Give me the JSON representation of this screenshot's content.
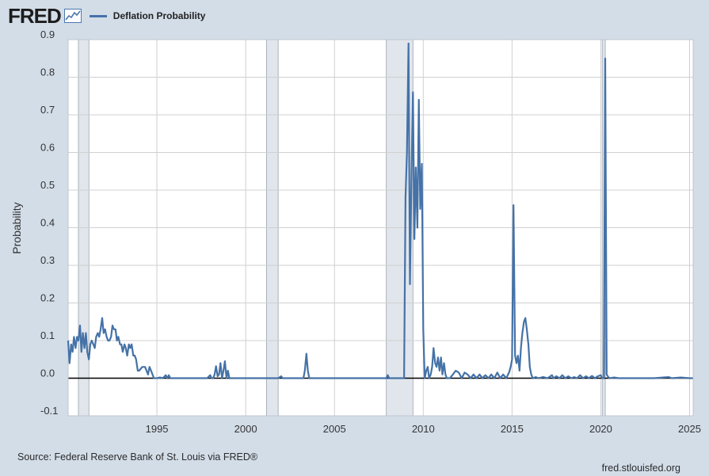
{
  "header": {
    "logo_text": "FRED",
    "logo_icon": "line-chart-icon",
    "legend_label": "Deflation Probability"
  },
  "colors": {
    "background": "#d3dde8",
    "plot_background": "#ffffff",
    "series": "#4572a7",
    "recession": "#e1e6ec",
    "grid": "#d0d0d0",
    "zero_line": "#000000"
  },
  "chart_data": {
    "type": "line",
    "ylabel": "Probability",
    "xlim": [
      1990.0,
      2025.2
    ],
    "ylim": [
      -0.1,
      0.9
    ],
    "yticks": [
      "-0.1",
      "0.0",
      "0.1",
      "0.2",
      "0.3",
      "0.4",
      "0.5",
      "0.6",
      "0.7",
      "0.8",
      "0.9"
    ],
    "xticks": [
      "1995",
      "2000",
      "2005",
      "2010",
      "2015",
      "2020",
      "2025"
    ],
    "grid": true,
    "legend_position": "top-left",
    "recessions": [
      [
        1990.58,
        1991.17
      ],
      [
        2001.17,
        2001.83
      ],
      [
        2007.92,
        2009.42
      ],
      [
        2020.08,
        2020.25
      ]
    ],
    "series": [
      {
        "name": "Deflation Probability",
        "points": [
          [
            1990.0,
            0.1
          ],
          [
            1990.08,
            0.04
          ],
          [
            1990.17,
            0.09
          ],
          [
            1990.25,
            0.07
          ],
          [
            1990.33,
            0.11
          ],
          [
            1990.42,
            0.08
          ],
          [
            1990.5,
            0.11
          ],
          [
            1990.58,
            0.1
          ],
          [
            1990.67,
            0.14
          ],
          [
            1990.75,
            0.07
          ],
          [
            1990.83,
            0.12
          ],
          [
            1990.92,
            0.08
          ],
          [
            1991.0,
            0.12
          ],
          [
            1991.08,
            0.07
          ],
          [
            1991.17,
            0.05
          ],
          [
            1991.25,
            0.09
          ],
          [
            1991.33,
            0.1
          ],
          [
            1991.42,
            0.09
          ],
          [
            1991.5,
            0.08
          ],
          [
            1991.58,
            0.11
          ],
          [
            1991.67,
            0.12
          ],
          [
            1991.75,
            0.11
          ],
          [
            1991.83,
            0.13
          ],
          [
            1991.92,
            0.16
          ],
          [
            1992.0,
            0.12
          ],
          [
            1992.08,
            0.13
          ],
          [
            1992.17,
            0.11
          ],
          [
            1992.25,
            0.1
          ],
          [
            1992.33,
            0.1
          ],
          [
            1992.42,
            0.11
          ],
          [
            1992.5,
            0.14
          ],
          [
            1992.58,
            0.13
          ],
          [
            1992.67,
            0.13
          ],
          [
            1992.75,
            0.1
          ],
          [
            1992.83,
            0.11
          ],
          [
            1992.92,
            0.09
          ],
          [
            1993.0,
            0.09
          ],
          [
            1993.08,
            0.07
          ],
          [
            1993.17,
            0.09
          ],
          [
            1993.25,
            0.08
          ],
          [
            1993.33,
            0.06
          ],
          [
            1993.42,
            0.09
          ],
          [
            1993.5,
            0.08
          ],
          [
            1993.58,
            0.09
          ],
          [
            1993.67,
            0.06
          ],
          [
            1993.75,
            0.06
          ],
          [
            1993.83,
            0.05
          ],
          [
            1993.92,
            0.02
          ],
          [
            1994.0,
            0.02
          ],
          [
            1994.17,
            0.03
          ],
          [
            1994.33,
            0.03
          ],
          [
            1994.5,
            0.01
          ],
          [
            1994.58,
            0.03
          ],
          [
            1994.67,
            0.02
          ],
          [
            1994.83,
            0.0
          ],
          [
            1995.0,
            0.0
          ],
          [
            1995.17,
            0.002
          ],
          [
            1995.33,
            0.0
          ],
          [
            1995.5,
            0.008
          ],
          [
            1995.58,
            0.0
          ],
          [
            1995.67,
            0.008
          ],
          [
            1995.75,
            0.0
          ],
          [
            1996.0,
            0.0
          ],
          [
            1996.5,
            0.0
          ],
          [
            1997.0,
            0.0
          ],
          [
            1997.5,
            0.0
          ],
          [
            1997.83,
            0.0
          ],
          [
            1998.0,
            0.008
          ],
          [
            1998.08,
            0.0
          ],
          [
            1998.17,
            0.0
          ],
          [
            1998.25,
            0.01
          ],
          [
            1998.33,
            0.032
          ],
          [
            1998.42,
            0.005
          ],
          [
            1998.5,
            0.01
          ],
          [
            1998.58,
            0.04
          ],
          [
            1998.67,
            0.0
          ],
          [
            1998.75,
            0.02
          ],
          [
            1998.83,
            0.045
          ],
          [
            1998.92,
            0.0
          ],
          [
            1999.0,
            0.02
          ],
          [
            1999.08,
            0.0
          ],
          [
            1999.5,
            0.0
          ],
          [
            2000.0,
            0.0
          ],
          [
            2000.5,
            0.0
          ],
          [
            2001.0,
            0.0
          ],
          [
            2001.5,
            0.0
          ],
          [
            2001.83,
            0.0
          ],
          [
            2002.0,
            0.005
          ],
          [
            2002.08,
            0.0
          ],
          [
            2002.5,
            0.0
          ],
          [
            2003.0,
            0.0
          ],
          [
            2003.25,
            0.0
          ],
          [
            2003.33,
            0.02
          ],
          [
            2003.42,
            0.065
          ],
          [
            2003.5,
            0.02
          ],
          [
            2003.58,
            0.0
          ],
          [
            2004.0,
            0.0
          ],
          [
            2005.0,
            0.0
          ],
          [
            2006.0,
            0.0
          ],
          [
            2006.5,
            0.0
          ],
          [
            2007.0,
            0.0
          ],
          [
            2007.5,
            0.0
          ],
          [
            2007.92,
            0.0
          ],
          [
            2008.0,
            0.008
          ],
          [
            2008.08,
            0.0
          ],
          [
            2008.5,
            0.0
          ],
          [
            2008.92,
            0.0
          ],
          [
            2009.0,
            0.48
          ],
          [
            2009.08,
            0.6
          ],
          [
            2009.17,
            0.89
          ],
          [
            2009.25,
            0.25
          ],
          [
            2009.33,
            0.52
          ],
          [
            2009.42,
            0.76
          ],
          [
            2009.5,
            0.37
          ],
          [
            2009.58,
            0.56
          ],
          [
            2009.67,
            0.4
          ],
          [
            2009.75,
            0.74
          ],
          [
            2009.83,
            0.45
          ],
          [
            2009.92,
            0.57
          ],
          [
            2010.0,
            0.13
          ],
          [
            2010.08,
            0.0
          ],
          [
            2010.17,
            0.02
          ],
          [
            2010.25,
            0.03
          ],
          [
            2010.33,
            0.0
          ],
          [
            2010.42,
            0.01
          ],
          [
            2010.5,
            0.03
          ],
          [
            2010.58,
            0.08
          ],
          [
            2010.67,
            0.04
          ],
          [
            2010.75,
            0.03
          ],
          [
            2010.83,
            0.055
          ],
          [
            2010.92,
            0.02
          ],
          [
            2011.0,
            0.055
          ],
          [
            2011.08,
            0.01
          ],
          [
            2011.17,
            0.04
          ],
          [
            2011.25,
            0.01
          ],
          [
            2011.33,
            0.0
          ],
          [
            2011.5,
            0.0
          ],
          [
            2011.67,
            0.01
          ],
          [
            2011.83,
            0.02
          ],
          [
            2012.0,
            0.015
          ],
          [
            2012.17,
            0.0
          ],
          [
            2012.33,
            0.015
          ],
          [
            2012.5,
            0.01
          ],
          [
            2012.67,
            0.0
          ],
          [
            2012.83,
            0.01
          ],
          [
            2013.0,
            0.0
          ],
          [
            2013.17,
            0.01
          ],
          [
            2013.33,
            0.0
          ],
          [
            2013.5,
            0.008
          ],
          [
            2013.67,
            0.0
          ],
          [
            2013.83,
            0.01
          ],
          [
            2014.0,
            0.0
          ],
          [
            2014.17,
            0.015
          ],
          [
            2014.33,
            0.0
          ],
          [
            2014.5,
            0.01
          ],
          [
            2014.67,
            0.0
          ],
          [
            2014.83,
            0.015
          ],
          [
            2014.92,
            0.03
          ],
          [
            2015.0,
            0.05
          ],
          [
            2015.08,
            0.46
          ],
          [
            2015.17,
            0.06
          ],
          [
            2015.25,
            0.04
          ],
          [
            2015.33,
            0.06
          ],
          [
            2015.42,
            0.02
          ],
          [
            2015.5,
            0.08
          ],
          [
            2015.58,
            0.12
          ],
          [
            2015.67,
            0.15
          ],
          [
            2015.75,
            0.16
          ],
          [
            2015.83,
            0.13
          ],
          [
            2015.92,
            0.09
          ],
          [
            2016.0,
            0.03
          ],
          [
            2016.08,
            0.01
          ],
          [
            2016.17,
            0.0
          ],
          [
            2016.33,
            0.003
          ],
          [
            2016.5,
            0.0
          ],
          [
            2016.75,
            0.003
          ],
          [
            2017.0,
            0.0
          ],
          [
            2017.25,
            0.008
          ],
          [
            2017.33,
            0.0
          ],
          [
            2017.5,
            0.005
          ],
          [
            2017.67,
            0.0
          ],
          [
            2017.83,
            0.008
          ],
          [
            2018.0,
            0.0
          ],
          [
            2018.17,
            0.005
          ],
          [
            2018.33,
            0.0
          ],
          [
            2018.5,
            0.003
          ],
          [
            2018.67,
            0.0
          ],
          [
            2018.83,
            0.008
          ],
          [
            2019.0,
            0.0
          ],
          [
            2019.17,
            0.005
          ],
          [
            2019.33,
            0.0
          ],
          [
            2019.5,
            0.006
          ],
          [
            2019.67,
            0.0
          ],
          [
            2019.83,
            0.005
          ],
          [
            2020.0,
            0.008
          ],
          [
            2020.08,
            0.0
          ],
          [
            2020.17,
            0.0
          ],
          [
            2020.25,
            0.85
          ],
          [
            2020.33,
            0.01
          ],
          [
            2020.42,
            0.003
          ],
          [
            2020.5,
            0.0
          ],
          [
            2020.75,
            0.002
          ],
          [
            2021.0,
            0.0
          ],
          [
            2021.5,
            0.0
          ],
          [
            2022.0,
            0.0
          ],
          [
            2022.5,
            0.0
          ],
          [
            2023.0,
            0.0
          ],
          [
            2023.5,
            0.002
          ],
          [
            2023.83,
            0.003
          ],
          [
            2024.0,
            0.0
          ],
          [
            2024.5,
            0.002
          ],
          [
            2025.0,
            0.0
          ],
          [
            2025.17,
            0.0
          ]
        ]
      }
    ]
  },
  "footer": {
    "source": "Source: Federal Reserve Bank of St. Louis via FRED®",
    "site": "fred.stlouisfed.org"
  }
}
